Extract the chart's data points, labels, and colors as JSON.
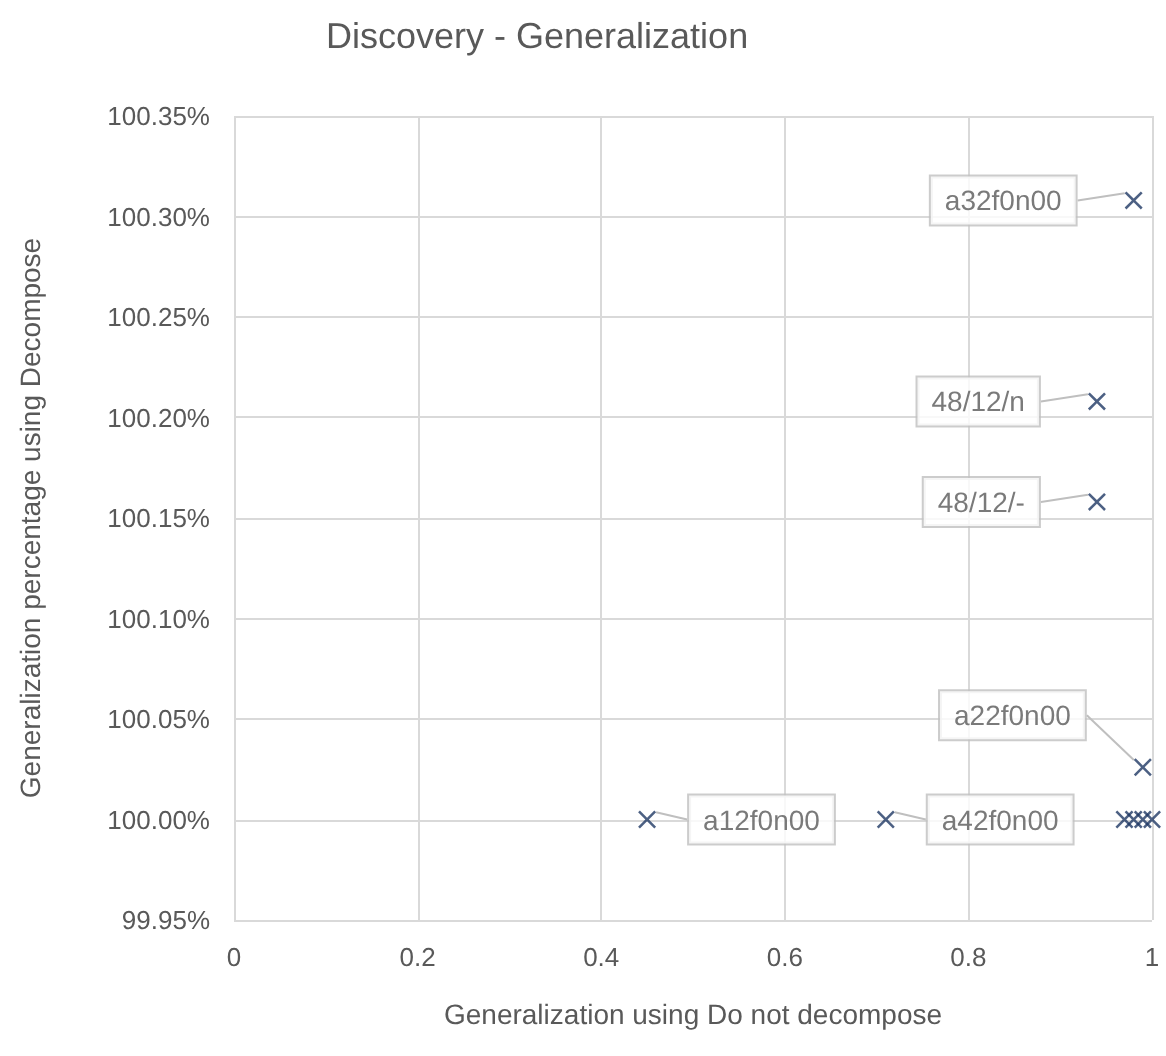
{
  "chart_data": {
    "type": "scatter",
    "title": "Discovery - Generalization",
    "xlabel": "Generalization using Do not decompose",
    "ylabel": "Generalization percentage using Decompose",
    "x": [
      0.45,
      0.71,
      0.99,
      0.94,
      0.94,
      0.98,
      0.97,
      0.98,
      0.99,
      1.0
    ],
    "values": [
      100.0,
      100.0,
      100.026,
      100.158,
      100.208,
      100.308,
      100.0,
      100.0,
      100.0,
      100.0
    ],
    "color": "#1f3864",
    "marker": "cross",
    "xlim": [
      0,
      1
    ],
    "xticks": [
      0,
      0.2,
      0.4,
      0.6,
      0.8,
      1
    ],
    "ylim": [
      99.95,
      100.35
    ],
    "yticks": [
      {
        "value": 99.95,
        "label": "99.95%"
      },
      {
        "value": 100.0,
        "label": "100.00%"
      },
      {
        "value": 100.05,
        "label": "100.05%"
      },
      {
        "value": 100.1,
        "label": "100.10%"
      },
      {
        "value": 100.15,
        "label": "100.15%"
      },
      {
        "value": 100.2,
        "label": "100.20%"
      },
      {
        "value": 100.25,
        "label": "100.25%"
      },
      {
        "value": 100.3,
        "label": "100.30%"
      },
      {
        "value": 100.35,
        "label": "100.35%"
      }
    ],
    "grid": true,
    "annotations": [
      {
        "text": "a12f0n00",
        "x": 0.45,
        "y": 100.0
      },
      {
        "text": "a42f0n00",
        "x": 0.71,
        "y": 100.0
      },
      {
        "text": "a22f0n00",
        "x": 0.99,
        "y": 100.026
      },
      {
        "text": "48/12/-",
        "x": 0.94,
        "y": 100.158
      },
      {
        "text": "48/12/n",
        "x": 0.94,
        "y": 100.208
      },
      {
        "text": "a32f0n00",
        "x": 0.98,
        "y": 100.308
      }
    ]
  }
}
